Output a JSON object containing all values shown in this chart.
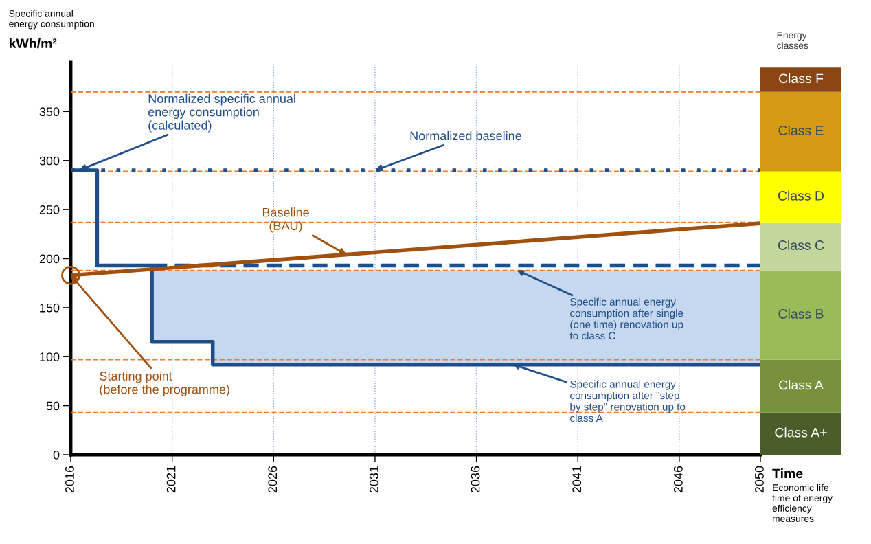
{
  "chart_data": [
    {
      "type": "line",
      "ylabel": "Specific annual\nenergy consumption\nkWh/m²",
      "xlabel": "Time",
      "xlim": [
        2016,
        2050
      ],
      "xticks": [
        2016,
        2021,
        2026,
        2031,
        2036,
        2041,
        2046,
        2050
      ],
      "ylim": [
        0,
        400
      ],
      "yticks": [
        0,
        50,
        100,
        150,
        200,
        250,
        300,
        350
      ],
      "grid": "x",
      "legend": false,
      "series": [
        {
          "color": "#1f4e89",
          "line_style": "solid",
          "x": [
            2016,
            2017.3,
            2017.3,
            2020,
            2020,
            2023,
            2023,
            2050
          ],
          "values": [
            290,
            290,
            193,
            193,
            115,
            115,
            92,
            92
          ]
        },
        {
          "color": "#1f4e89",
          "line_style": "dotted",
          "x": [
            2016,
            2050
          ],
          "values": [
            290,
            290
          ]
        },
        {
          "color": "#1f4e89",
          "line_style": "dashed",
          "x": [
            2020,
            2023,
            2023,
            2050
          ],
          "values": [
            193,
            193,
            193,
            193
          ],
          "lower": [
            115,
            115,
            92,
            92
          ],
          "upper": [
            188,
            188,
            188,
            188
          ]
        },
        {
          "color": "#a0500f",
          "line_style": "solid",
          "x": [
            2016,
            2050
          ],
          "values": [
            183,
            236
          ]
        }
      ],
      "ref_lines": [
        {
          "axis": "y",
          "value": 43,
          "color": "#f4782a",
          "line_style": "dashed"
        },
        {
          "axis": "y",
          "value": 97,
          "color": "#f4782a",
          "line_style": "dashed"
        },
        {
          "axis": "y",
          "value": 188,
          "color": "#f4782a",
          "line_style": "dashed"
        },
        {
          "axis": "y",
          "value": 237,
          "color": "#f4782a",
          "line_style": "dashed"
        },
        {
          "axis": "y",
          "value": 289,
          "color": "#f4782a",
          "line_style": "dashed"
        },
        {
          "axis": "y",
          "value": 370,
          "color": "#f4782a",
          "line_style": "dashed"
        }
      ],
      "annotations": [
        {
          "text": "Normalized specific annual\nenergy consumption\n(calculated)",
          "x": 2016.4,
          "y": 290
        },
        {
          "text": "Normalized baseline",
          "x": 2031,
          "y": 290
        },
        {
          "text": "Baseline\n(BAU)",
          "x": 2029.6,
          "y": 204
        },
        {
          "text": "Specific annual energy\nconsumption after single\n(one time) renovation up\nto class C",
          "x": 2038,
          "y": 188
        },
        {
          "text": "Specific annual energy\nconsumption after \"step\nby step\" renovation up to\nclass A",
          "x": 2037.8,
          "y": 92
        },
        {
          "text": "Starting point\n(before the programme)",
          "x": 2016,
          "y": 183
        },
        "Economic life\ntime of energy\nefficiency\nmeasures"
      ]
    },
    {
      "type": "bar",
      "stacked": true,
      "title": "Energy\nclasses",
      "categories": [
        null
      ],
      "ylim": [
        0,
        400
      ],
      "tick_labels": false,
      "legend": false,
      "series": [
        {
          "name": "Class A+",
          "color": "#4b5e2a",
          "values": [
            43
          ]
        },
        {
          "name": "Class A",
          "color": "#76923c",
          "values": [
            54
          ]
        },
        {
          "name": "Class B",
          "color": "#9bbb59",
          "values": [
            91
          ]
        },
        {
          "name": "Class C",
          "color": "#c3d69b",
          "values": [
            49
          ]
        },
        {
          "name": "Class D",
          "color": "#ffff00",
          "values": [
            52
          ]
        },
        {
          "name": "Class E",
          "color": "#d49a14",
          "values": [
            81
          ]
        },
        {
          "name": "Class F",
          "color": "#8b4513",
          "values": [
            25
          ]
        }
      ]
    }
  ]
}
